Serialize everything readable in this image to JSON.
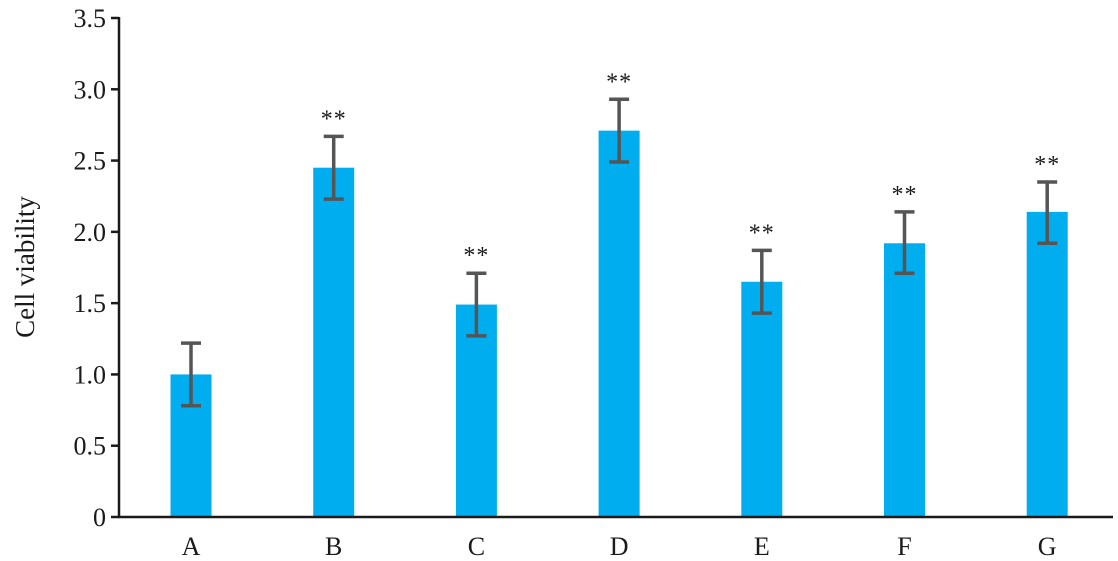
{
  "chart_data": {
    "type": "bar",
    "title": "",
    "xlabel": "",
    "ylabel": "Cell viability",
    "ylim": [
      0,
      3.5
    ],
    "yticks": [
      0,
      0.5,
      1.0,
      1.5,
      2.0,
      2.5,
      3.0,
      3.5
    ],
    "ytick_labels": [
      "0",
      "0.5",
      "1.0",
      "1.5",
      "2.0",
      "2.5",
      "3.0",
      "3.5"
    ],
    "categories": [
      "A",
      "B",
      "C",
      "D",
      "E",
      "F",
      "G"
    ],
    "values": [
      1.0,
      2.45,
      1.49,
      2.71,
      1.65,
      1.92,
      2.14
    ],
    "error_low": [
      0.78,
      2.23,
      1.27,
      2.49,
      1.43,
      1.71,
      1.92
    ],
    "error_high": [
      1.22,
      2.67,
      1.71,
      2.93,
      1.87,
      2.14,
      2.35
    ],
    "significance": [
      "",
      "**",
      "**",
      "**",
      "**",
      "**",
      "**"
    ],
    "grid": false,
    "legend": "none",
    "colors": {
      "bar": "#00AEEF",
      "error_bar": "#555555",
      "axis": "#1a1a1a"
    }
  }
}
